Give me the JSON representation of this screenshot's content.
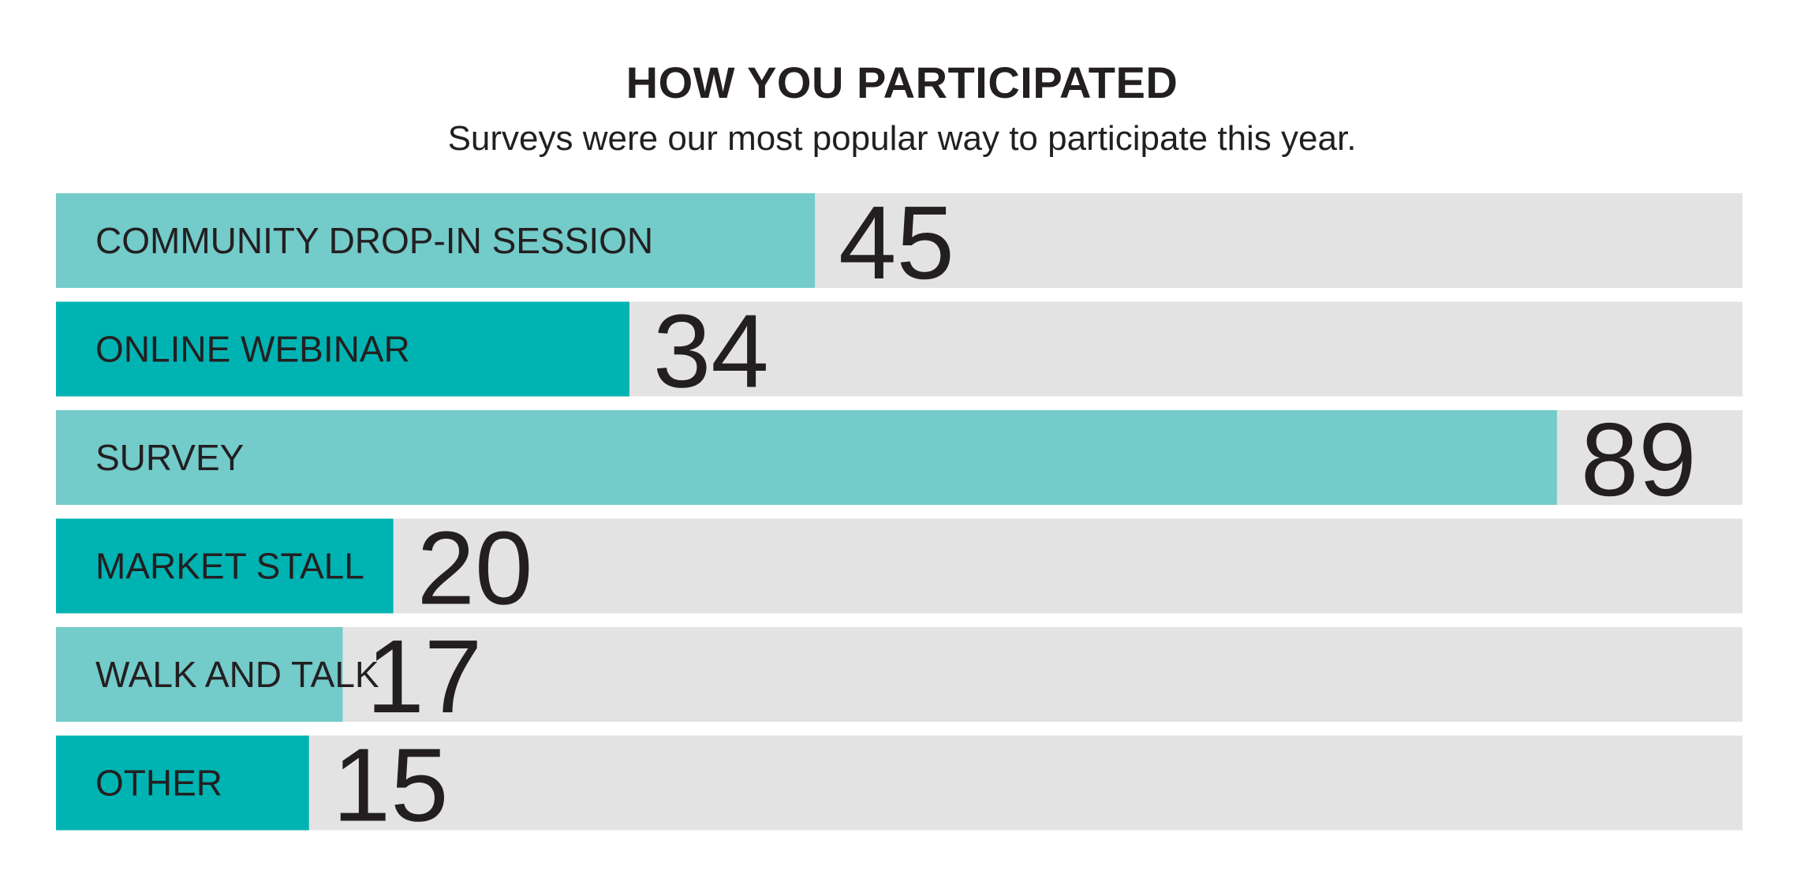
{
  "chart_data": {
    "type": "bar",
    "orientation": "horizontal",
    "title": "HOW YOU PARTICIPATED",
    "subtitle": "Surveys were our most popular way to participate this year.",
    "categories": [
      "COMMUNITY DROP-IN SESSION",
      "ONLINE WEBINAR",
      "SURVEY",
      "MARKET STALL",
      "WALK AND TALK",
      "OTHER"
    ],
    "values": [
      45,
      34,
      89,
      20,
      17,
      15
    ],
    "xlim": [
      0,
      100
    ],
    "grid": false,
    "legend": "none",
    "colors": {
      "bar_light": "#73cbca",
      "bar_dark": "#00b3b3",
      "track": "#e3e3e3",
      "text": "#231f20"
    }
  }
}
